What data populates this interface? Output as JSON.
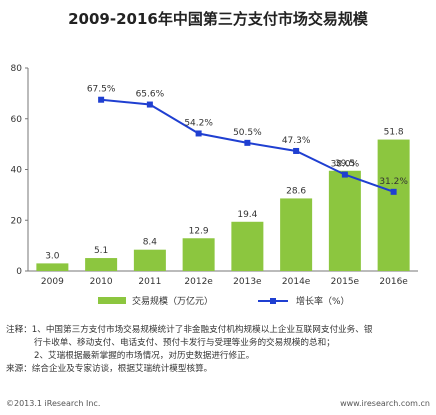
{
  "chart_data": {
    "type": "bar",
    "title": "2009-2016年中国第三方支付市场交易规模",
    "categories": [
      "2009",
      "2010",
      "2011",
      "2012e",
      "2013e",
      "2014e",
      "2015e",
      "2016e"
    ],
    "ylim": [
      0,
      80
    ],
    "yticks": [
      "0",
      "20",
      "40",
      "60",
      "80"
    ],
    "series": [
      {
        "name": "交易规模（万亿元）",
        "type": "bar",
        "values": [
          3.0,
          5.1,
          8.4,
          12.9,
          19.4,
          28.6,
          39.5,
          51.8
        ],
        "labels": [
          "3.0",
          "5.1",
          "8.4",
          "12.9",
          "19.4",
          "28.6",
          "39.5",
          "51.8"
        ],
        "color": "#8CC63F"
      },
      {
        "name": "增长率（%）",
        "type": "line",
        "x": [
          "2010",
          "2011",
          "2012e",
          "2013e",
          "2014e",
          "2015e",
          "2016e"
        ],
        "values": [
          67.5,
          65.6,
          54.2,
          50.5,
          47.3,
          38.0,
          31.2
        ],
        "labels": [
          "67.5%",
          "65.6%",
          "54.2%",
          "50.5%",
          "47.3%",
          "38.0%",
          "31.2%"
        ],
        "color": "#1F3FD1"
      }
    ],
    "legend": "bottom",
    "grid": false
  },
  "notes": {
    "line1": "注释：1、中国第三方支付市场交易规模统计了非金融支付机构规模以上企业互联网支付业务、银",
    "line2": "行卡收单、移动支付、电话支付、预付卡发行与受理等业务的交易规模的总和；",
    "line3": "2、艾瑞根据最新掌握的市场情况，对历史数据进行修正。",
    "line4": "来源：综合企业及专家访谈，根据艾瑞统计模型核算。"
  },
  "footer": {
    "copyright": "©2013.1 iResearch Inc.",
    "website": "www.iresearch.com.cn"
  }
}
